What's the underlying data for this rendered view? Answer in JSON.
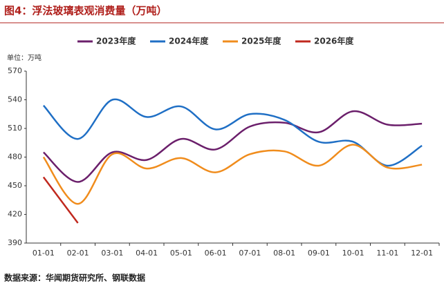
{
  "title": "图4：浮法玻璃表观消费量（万吨）",
  "source": "数据来源：华闻期货研究所、钢联数据",
  "chart_data": {
    "type": "line",
    "smooth": true,
    "y_unit_label": "单位：万吨",
    "categories": [
      "01-01",
      "02-01",
      "03-01",
      "04-01",
      "05-01",
      "06-01",
      "07-01",
      "08-01",
      "09-01",
      "10-01",
      "11-01",
      "12-01"
    ],
    "series": [
      {
        "name": "2023年度",
        "color": "#6b1f6b",
        "values": [
          485,
          454,
          485,
          477,
          499,
          488,
          512,
          516,
          506,
          528,
          514,
          515
        ]
      },
      {
        "name": "2024年度",
        "color": "#1f6fc5",
        "values": [
          534,
          499,
          540,
          522,
          533,
          509,
          525,
          519,
          496,
          496,
          471,
          492
        ]
      },
      {
        "name": "2025年度",
        "color": "#f08c1c",
        "values": [
          480,
          431,
          483,
          468,
          479,
          464,
          483,
          486,
          471,
          493,
          469,
          472
        ]
      },
      {
        "name": "2026年度",
        "color": "#c0281e",
        "values": [
          459,
          411,
          null,
          null,
          null,
          null,
          null,
          null,
          null,
          null,
          null,
          null
        ]
      }
    ],
    "ylim": [
      390,
      570
    ],
    "yticks": [
      390,
      420,
      450,
      480,
      510,
      540,
      570
    ],
    "grid": false,
    "legend": "top"
  }
}
